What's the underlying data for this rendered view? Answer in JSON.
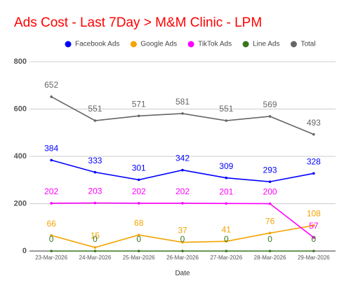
{
  "chart_data": {
    "type": "line",
    "title": "Ads Cost - Last 7Day > M&M Clinic - LPM",
    "x_label": "Date",
    "categories": [
      "23-Mar-2026",
      "24-Mar-2026",
      "25-Mar-2026",
      "26-Mar-2026",
      "27-Mar-2026",
      "28-Mar-2026",
      "29-Mar-2026"
    ],
    "series": [
      {
        "name": "Facebook Ads",
        "color": "#0000ff",
        "values": [
          384,
          333,
          301,
          342,
          309,
          293,
          328
        ]
      },
      {
        "name": "Google Ads",
        "color": "#f4a300",
        "values": [
          66,
          15,
          68,
          37,
          41,
          76,
          108
        ]
      },
      {
        "name": "TikTok Ads",
        "color": "#ff00ff",
        "values": [
          202,
          203,
          202,
          202,
          201,
          200,
          57
        ]
      },
      {
        "name": "Line Ads",
        "color": "#38761d",
        "values": [
          0,
          0,
          0,
          0,
          0,
          0,
          0
        ]
      },
      {
        "name": "Total",
        "color": "#666666",
        "values": [
          652,
          551,
          571,
          581,
          551,
          569,
          493
        ]
      }
    ],
    "ylim": [
      0,
      800
    ],
    "yticks": [
      0,
      200,
      400,
      600,
      800
    ],
    "grid": true,
    "legend": "top"
  }
}
